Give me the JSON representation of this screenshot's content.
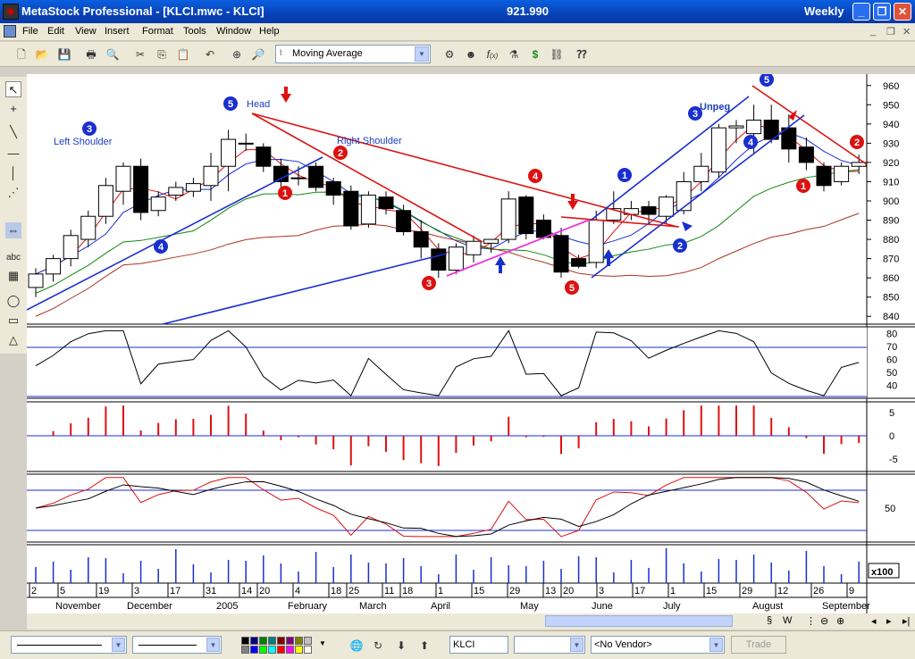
{
  "window": {
    "title": "MetaStock Professional - [KLCI.mwc - KLCI]",
    "last_value": "921.990",
    "period": "Weekly"
  },
  "menu": [
    "File",
    "Edit",
    "View",
    "Insert",
    "Format",
    "Tools",
    "Window",
    "Help"
  ],
  "toolbar": {
    "indicator_select": "Moving Average",
    "icons": [
      "new-icon",
      "open-icon",
      "save-icon",
      "print-icon",
      "print-preview-icon",
      "cut-icon",
      "copy-icon",
      "paste-icon",
      "undo-icon",
      "crosshair-icon",
      "zoom-icon",
      "indicator-icon",
      "expert-icon",
      "formula-icon",
      "system-tester-icon",
      "dollar-icon",
      "explorer-icon",
      "help-icon"
    ]
  },
  "left_tools": [
    "pointer-icon",
    "crosshair-icon",
    "trendline-icon",
    "horizontal-line-icon",
    "vertical-line-icon",
    "cycle-icon",
    "snap-icon",
    "text-icon",
    "grid-icon",
    "ellipse-icon",
    "rectangle-icon",
    "triangle-icon"
  ],
  "chart_data": {
    "type": "candlestick",
    "symbol": "KLCI",
    "ylim": [
      835,
      965
    ],
    "y_ticks": [
      840,
      850,
      860,
      870,
      880,
      890,
      900,
      910,
      920,
      930,
      940,
      950,
      960
    ],
    "candles": [
      {
        "o": 855,
        "h": 865,
        "l": 850,
        "c": 862
      },
      {
        "o": 862,
        "h": 872,
        "l": 858,
        "c": 870
      },
      {
        "o": 870,
        "h": 885,
        "l": 866,
        "c": 882
      },
      {
        "o": 880,
        "h": 895,
        "l": 876,
        "c": 892
      },
      {
        "o": 892,
        "h": 912,
        "l": 888,
        "c": 908
      },
      {
        "o": 905,
        "h": 920,
        "l": 898,
        "c": 918
      },
      {
        "o": 918,
        "h": 922,
        "l": 890,
        "c": 894
      },
      {
        "o": 895,
        "h": 905,
        "l": 892,
        "c": 902
      },
      {
        "o": 903,
        "h": 910,
        "l": 900,
        "c": 907
      },
      {
        "o": 905,
        "h": 912,
        "l": 902,
        "c": 909
      },
      {
        "o": 908,
        "h": 925,
        "l": 900,
        "c": 918
      },
      {
        "o": 918,
        "h": 937,
        "l": 905,
        "c": 932
      },
      {
        "o": 930,
        "h": 935,
        "l": 926,
        "c": 930
      },
      {
        "o": 928,
        "h": 930,
        "l": 915,
        "c": 918
      },
      {
        "o": 918,
        "h": 922,
        "l": 905,
        "c": 910
      },
      {
        "o": 912,
        "h": 918,
        "l": 908,
        "c": 912
      },
      {
        "o": 918,
        "h": 920,
        "l": 905,
        "c": 907
      },
      {
        "o": 910,
        "h": 912,
        "l": 898,
        "c": 903
      },
      {
        "o": 905,
        "h": 908,
        "l": 885,
        "c": 887
      },
      {
        "o": 888,
        "h": 905,
        "l": 886,
        "c": 903
      },
      {
        "o": 902,
        "h": 905,
        "l": 893,
        "c": 896
      },
      {
        "o": 895,
        "h": 898,
        "l": 882,
        "c": 884
      },
      {
        "o": 884,
        "h": 890,
        "l": 870,
        "c": 876
      },
      {
        "o": 875,
        "h": 878,
        "l": 860,
        "c": 864
      },
      {
        "o": 864,
        "h": 878,
        "l": 862,
        "c": 876
      },
      {
        "o": 872,
        "h": 882,
        "l": 868,
        "c": 879
      },
      {
        "o": 878,
        "h": 880,
        "l": 873,
        "c": 880
      },
      {
        "o": 880,
        "h": 905,
        "l": 878,
        "c": 901
      },
      {
        "o": 902,
        "h": 903,
        "l": 880,
        "c": 883
      },
      {
        "o": 890,
        "h": 893,
        "l": 880,
        "c": 881
      },
      {
        "o": 882,
        "h": 886,
        "l": 860,
        "c": 863
      },
      {
        "o": 870,
        "h": 872,
        "l": 865,
        "c": 866
      },
      {
        "o": 868,
        "h": 895,
        "l": 865,
        "c": 890
      },
      {
        "o": 890,
        "h": 905,
        "l": 888,
        "c": 896
      },
      {
        "o": 893,
        "h": 900,
        "l": 890,
        "c": 896
      },
      {
        "o": 897,
        "h": 900,
        "l": 888,
        "c": 893
      },
      {
        "o": 892,
        "h": 903,
        "l": 888,
        "c": 902
      },
      {
        "o": 895,
        "h": 915,
        "l": 893,
        "c": 910
      },
      {
        "o": 910,
        "h": 925,
        "l": 905,
        "c": 918
      },
      {
        "o": 915,
        "h": 940,
        "l": 912,
        "c": 938
      },
      {
        "o": 938,
        "h": 942,
        "l": 930,
        "c": 939
      },
      {
        "o": 935,
        "h": 950,
        "l": 925,
        "c": 942
      },
      {
        "o": 942,
        "h": 950,
        "l": 930,
        "c": 932
      },
      {
        "o": 938,
        "h": 945,
        "l": 920,
        "c": 927
      },
      {
        "o": 928,
        "h": 933,
        "l": 916,
        "c": 920
      },
      {
        "o": 918,
        "h": 920,
        "l": 905,
        "c": 908
      },
      {
        "o": 910,
        "h": 920,
        "l": 908,
        "c": 918
      },
      {
        "o": 918,
        "h": 924,
        "l": 914,
        "c": 920
      }
    ],
    "annotations": [
      {
        "text": "Left Shoulder",
        "color": "#1a3fbf"
      },
      {
        "text": "Head",
        "color": "#1a3fbf"
      },
      {
        "text": "Right Shoulder",
        "color": "#1a3fbf"
      },
      {
        "text": "Unpeg",
        "color": "#1a3fbf"
      }
    ],
    "rsi_ticks": [
      40,
      50,
      60,
      70,
      80
    ],
    "momentum_ticks": [
      5,
      0,
      -5
    ],
    "stoch_ticks": [
      50
    ],
    "volume_scale": "x100",
    "x_ticks": [
      "2",
      "5",
      "19",
      "3",
      "17",
      "31",
      "14",
      "20",
      "4",
      "18",
      "25",
      "11",
      "18",
      "1",
      "15",
      "29",
      "13",
      "20",
      "3",
      "17",
      "1",
      "15",
      "29",
      "12",
      "26",
      "9"
    ],
    "month_labels": [
      "November",
      "December",
      "2005",
      "February",
      "March",
      "April",
      "May",
      "June",
      "July",
      "August",
      "September"
    ]
  },
  "bottombar": {
    "symbol_field": "KLCI",
    "vendor": "<No Vendor>",
    "trade": "Trade",
    "palette": [
      "#000000",
      "#000080",
      "#008000",
      "#008080",
      "#800000",
      "#800080",
      "#808000",
      "#c0c0c0",
      "#808080",
      "#0000ff",
      "#00ff00",
      "#00ffff",
      "#ff0000",
      "#ff00ff",
      "#ffff00",
      "#ffffff"
    ]
  },
  "colors": {
    "bull": "#ffffff",
    "bear": "#000000",
    "red_line": "#dd1111",
    "blue_line": "#1a2fd0",
    "magenta_line": "#ee33dd",
    "green_ma": "#118811",
    "brown_ma": "#aa3322"
  }
}
